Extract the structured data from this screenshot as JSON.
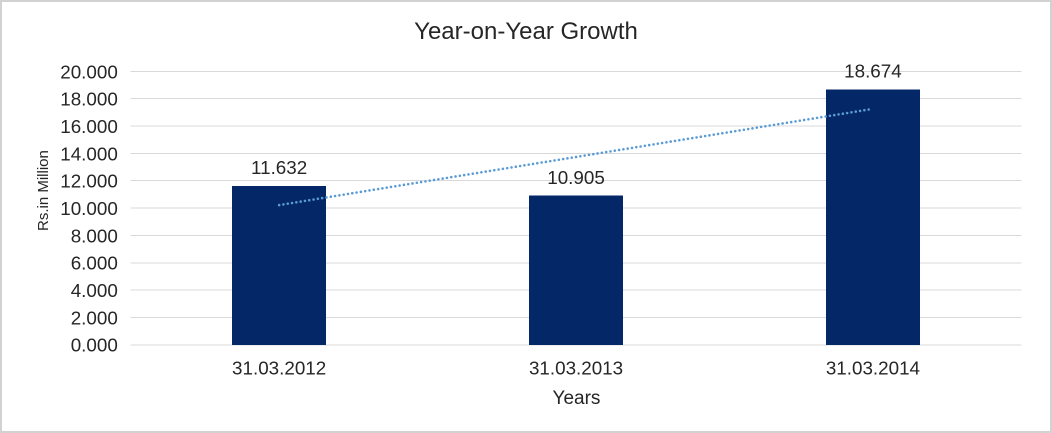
{
  "colors": {
    "text": "#262626",
    "bar": "#042768",
    "gridline": "#D9D9D9",
    "trendline": "#5B9BD5",
    "border": "#D2D2D2",
    "background": "#FFFFFF"
  },
  "chart_data": {
    "type": "bar",
    "title": "Year-on-Year Growth",
    "categories": [
      "31.03.2012",
      "31.03.2013",
      "31.03.2014"
    ],
    "values": [
      11.632,
      10.905,
      18.674
    ],
    "data_labels": [
      "11.632",
      "10.905",
      "18.674"
    ],
    "xlabel": "Years",
    "ylabel": "Rs.in Million",
    "ylim": [
      0,
      20
    ],
    "ytick_step": 2,
    "ytick_labels": [
      "0.000",
      "2.000",
      "4.000",
      "6.000",
      "8.000",
      "10.000",
      "12.000",
      "14.000",
      "16.000",
      "18.000",
      "20.000"
    ],
    "grid": true,
    "legend": "none",
    "trendline": {
      "type": "linear",
      "style": "dotted",
      "start": {
        "category_index": 0,
        "value": 10.22
      },
      "end": {
        "category_index": 2,
        "value": 17.26
      }
    }
  }
}
